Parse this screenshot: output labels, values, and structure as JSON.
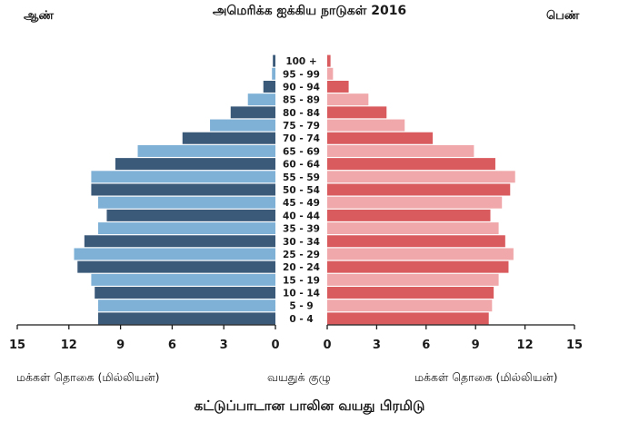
{
  "chart_data": {
    "type": "bar",
    "subtype": "population-pyramid",
    "title": "அமெரிக்க ஐக்கிய நாடுகள் 2016",
    "caption": "கட்டுப்பாடான பாலின வயது பிரமிடு",
    "male_label": "ஆண்",
    "female_label": "பெண்",
    "left_axis_title": "மக்கள் தொகை (மில்லியன்)",
    "center_axis_title": "வயதுக் குழு",
    "right_axis_title": "மக்கள் தொகை (மில்லியன்)",
    "xlim": [
      0,
      15
    ],
    "x_ticks": [
      0,
      3,
      6,
      9,
      12,
      15
    ],
    "x_tick_labels": [
      "0",
      "3",
      "6",
      "9",
      "12",
      "15"
    ],
    "categories": [
      "0 - 4",
      "5 - 9",
      "10 - 14",
      "15 - 19",
      "20 - 24",
      "25 - 29",
      "30 - 34",
      "35 - 39",
      "40 - 44",
      "45 - 49",
      "50 - 54",
      "55 - 59",
      "60 - 64",
      "65 - 69",
      "70 - 74",
      "75 - 79",
      "80 - 84",
      "85 - 89",
      "90 - 94",
      "95 - 99",
      "100 +"
    ],
    "series": [
      {
        "name": "ஆண்",
        "values": [
          10.3,
          10.3,
          10.5,
          10.7,
          11.5,
          11.7,
          11.1,
          10.3,
          9.8,
          10.3,
          10.7,
          10.7,
          9.3,
          8.0,
          5.4,
          3.8,
          2.6,
          1.6,
          0.7,
          0.2,
          0.15
        ]
      },
      {
        "name": "பெண்",
        "values": [
          9.8,
          10.0,
          10.1,
          10.4,
          11.0,
          11.3,
          10.8,
          10.4,
          9.9,
          10.6,
          11.1,
          11.4,
          10.2,
          8.9,
          6.4,
          4.7,
          3.6,
          2.5,
          1.3,
          0.35,
          0.2
        ]
      }
    ],
    "colors": {
      "male_dark": "#3b5a7a",
      "male_light": "#7fb0d6",
      "female_dark": "#d95b5e",
      "female_light": "#f0a8aa",
      "axis": "#1a1a1a"
    }
  }
}
